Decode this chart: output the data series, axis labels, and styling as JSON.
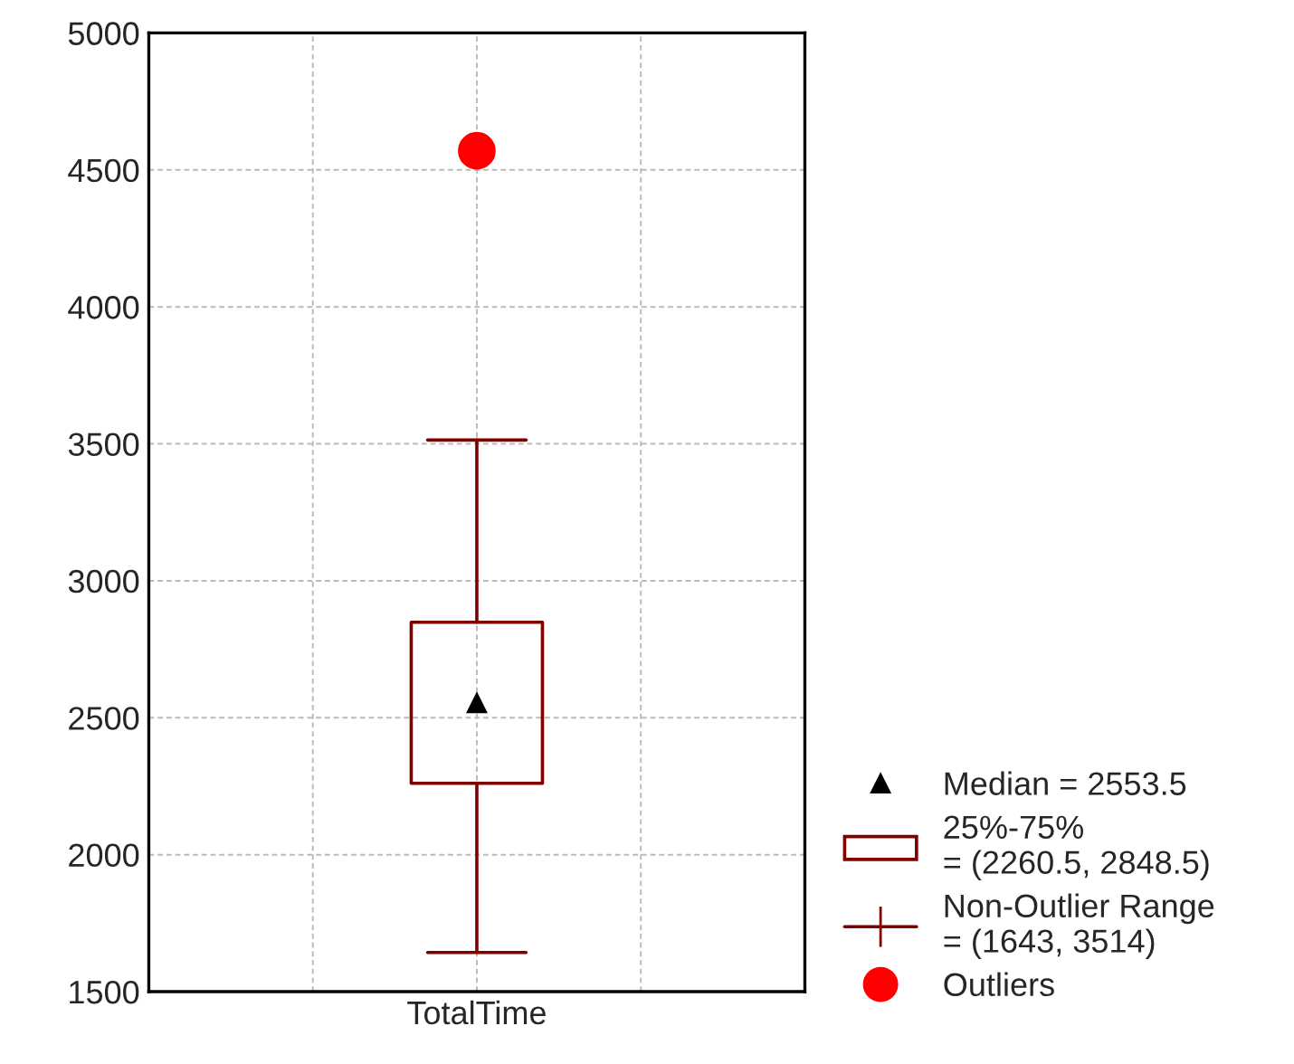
{
  "chart_data": {
    "type": "box",
    "categories": [
      "TotalTime"
    ],
    "series": [
      {
        "color": "#800000",
        "boxes": [
          {
            "low": 1643,
            "q1": 2260.5,
            "median": 2553.5,
            "q3": 2848.5,
            "high": 3514
          }
        ]
      },
      {
        "type": "scatter",
        "color": "#ff0000",
        "x": [
          "TotalTime"
        ],
        "values": [
          4570
        ]
      }
    ],
    "ylim": [
      1500,
      5000
    ],
    "yticks": [
      1500,
      2000,
      2500,
      3000,
      3500,
      4000,
      4500,
      5000
    ],
    "grid": true,
    "annotations": [
      "Median = 2553.5",
      "25%-75%\n= (2260.5, 2848.5)",
      "Non-Outlier Range\n= (1643, 3514)",
      "Outliers"
    ]
  }
}
